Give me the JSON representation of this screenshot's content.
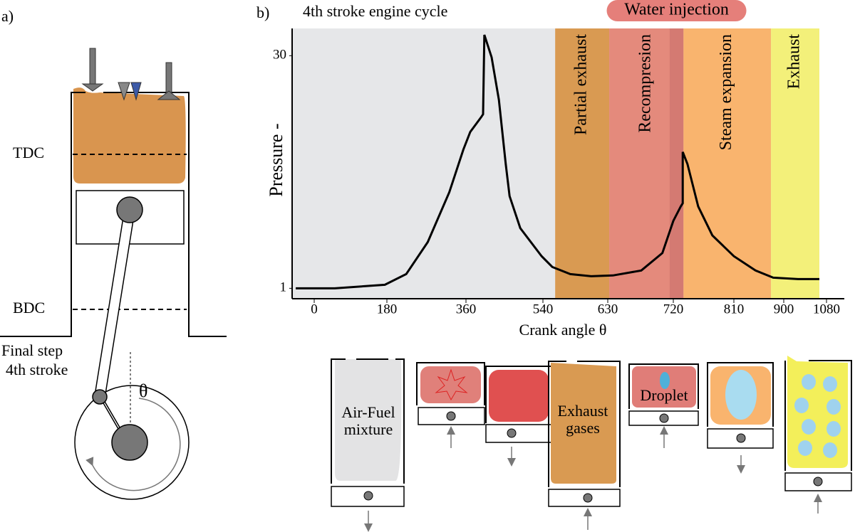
{
  "panel_a": {
    "label": "a)",
    "tdc": "TDC",
    "bdc": "BDC",
    "caption_1": "Final step",
    "caption_2": "4th stroke",
    "angle": "θ"
  },
  "chart_data": {
    "type": "line",
    "panel_label": "b)",
    "title": "4th stroke engine cycle",
    "y_label": "Pressure -",
    "x_label": "Crank angle θ",
    "plot_background": "#e6e7e9",
    "regions": [
      {
        "name": "Partial exhaust",
        "start": 557,
        "end": 632,
        "color": "#d99a52"
      },
      {
        "name": "Recompresion",
        "start": 632,
        "end": 735,
        "color": "#e48a7c"
      },
      {
        "name": "Steam expansion",
        "start": 735,
        "end": 877,
        "color": "#f9b46e"
      },
      {
        "name": "Exhaust",
        "start": 877,
        "end": 1050,
        "color": "#f3f07a"
      }
    ],
    "water_injection": {
      "label": "Water injection",
      "start": 715,
      "end": 735,
      "color": "#d47a72",
      "label_color": "#e57f7a"
    },
    "series": [
      {
        "name": "Pressure",
        "color": "#000000",
        "x": [
          -46,
          51,
          175,
          224,
          273,
          322,
          354,
          370,
          395,
          400,
          403,
          420,
          437,
          453,
          462,
          487,
          537,
          553,
          578,
          607,
          637,
          676,
          705,
          720,
          731,
          734,
          734,
          741,
          757,
          778,
          810,
          849,
          881,
          960,
          1050
        ],
        "values": [
          1,
          1,
          1.44,
          2.77,
          6.76,
          12.97,
          18.29,
          20.5,
          22.3,
          22.7,
          32.6,
          29.8,
          24.5,
          16.5,
          12.5,
          8.5,
          5,
          3.66,
          2.77,
          2.5,
          2.6,
          3.22,
          5.4,
          9.4,
          11.2,
          11.6,
          18,
          16.5,
          11.2,
          7.6,
          5,
          3.22,
          2.33,
          2.15,
          2.15
        ]
      }
    ],
    "xlim": [
      -55,
      1155
    ],
    "ylim": [
      -0.3,
      33.4
    ],
    "xticks": [
      0,
      180,
      360,
      540,
      630,
      720,
      810,
      900,
      1080
    ],
    "yticks": [
      1,
      30
    ]
  },
  "diagrams": {
    "air_fuel_1": "Air-Fuel",
    "air_fuel_2": "mixture",
    "exhaust_1": "Exhaust",
    "exhaust_2": "gases",
    "droplet": "Droplet"
  }
}
